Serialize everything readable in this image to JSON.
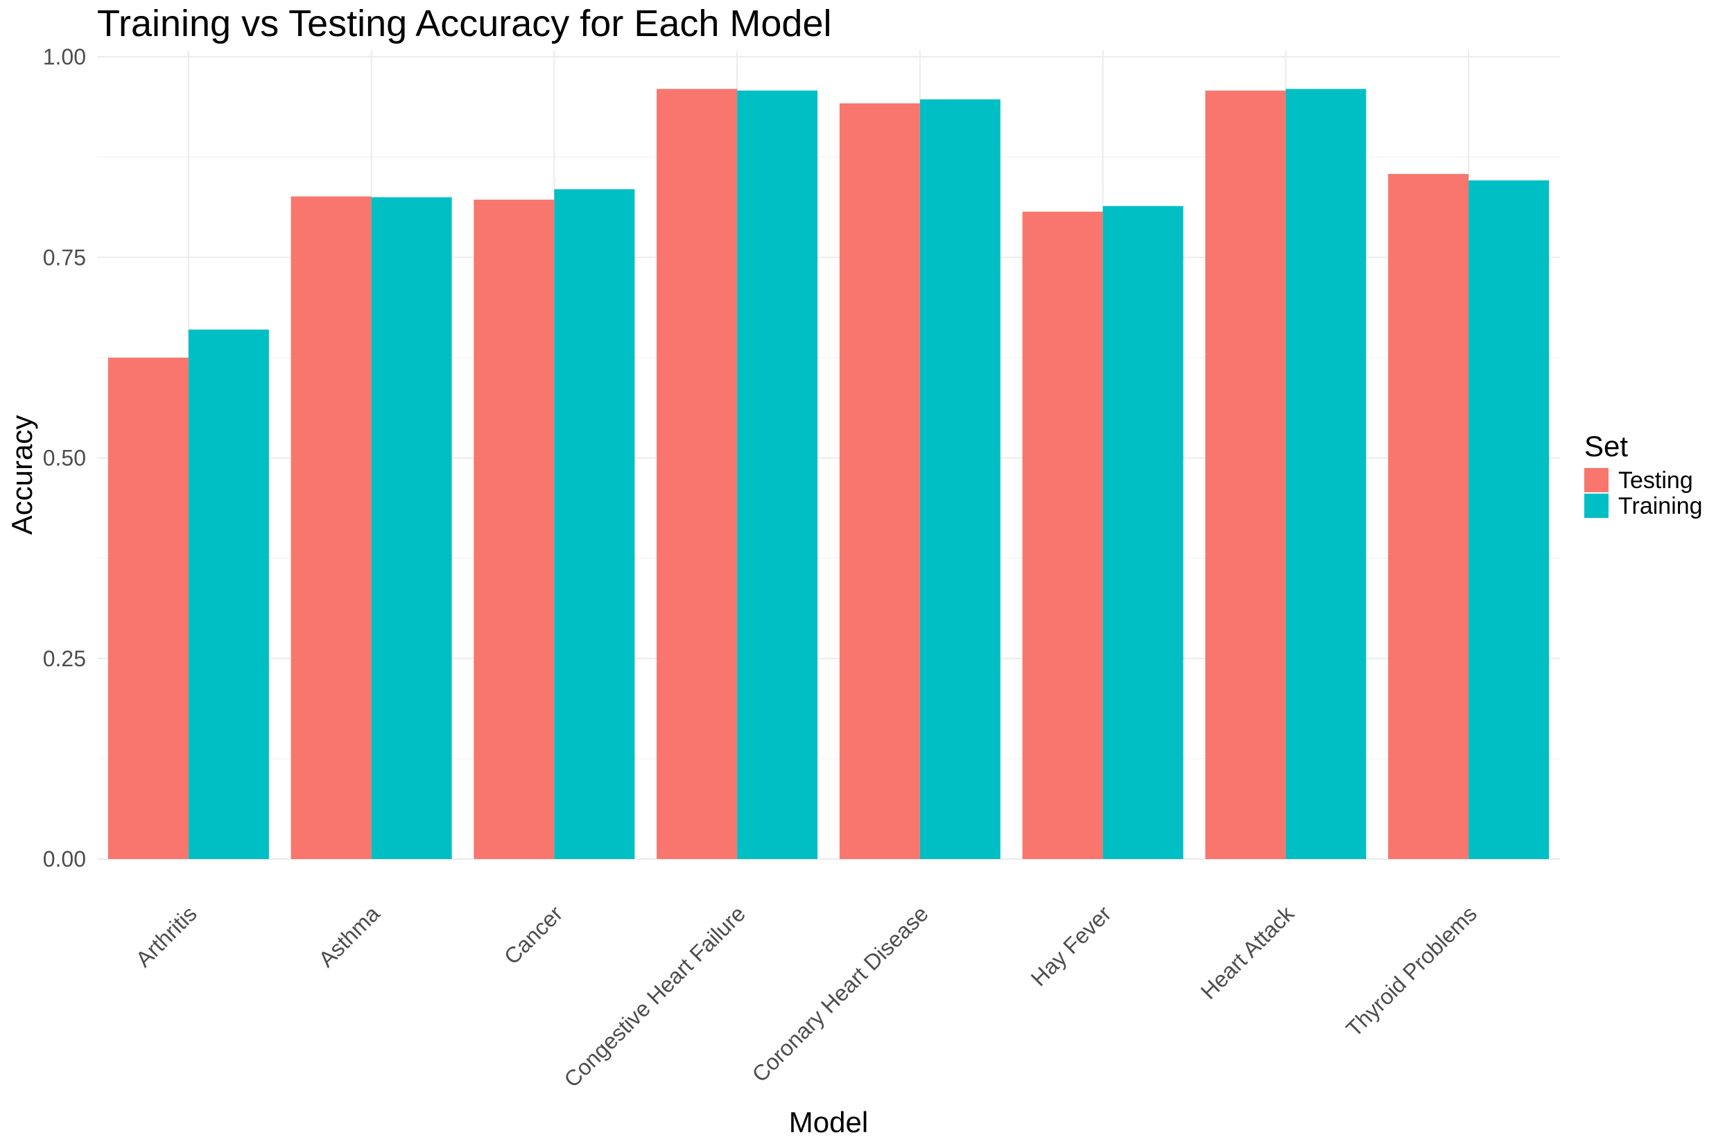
{
  "chart_data": {
    "type": "bar",
    "title": "Training vs Testing Accuracy for Each Model",
    "xlabel": "Model",
    "ylabel": "Accuracy",
    "categories": [
      "Arthritis",
      "Asthma",
      "Cancer",
      "Congestive Heart Failure",
      "Coronary Heart Disease",
      "Hay Fever",
      "Heart Attack",
      "Thyroid Problems"
    ],
    "series": [
      {
        "name": "Testing",
        "color": "#F8766D",
        "values": [
          0.625,
          0.826,
          0.822,
          0.96,
          0.942,
          0.807,
          0.958,
          0.854
        ]
      },
      {
        "name": "Training",
        "color": "#00BFC4",
        "values": [
          0.66,
          0.825,
          0.835,
          0.958,
          0.947,
          0.814,
          0.96,
          0.846
        ]
      }
    ],
    "ylim": [
      0,
      1
    ],
    "yticks": [
      0,
      0.25,
      0.5,
      0.75,
      1
    ],
    "ytick_labels": [
      "0.00",
      "0.25",
      "0.50",
      "0.75",
      "1.00"
    ],
    "grid": true,
    "legend": {
      "title": "Set",
      "position": "right"
    }
  }
}
